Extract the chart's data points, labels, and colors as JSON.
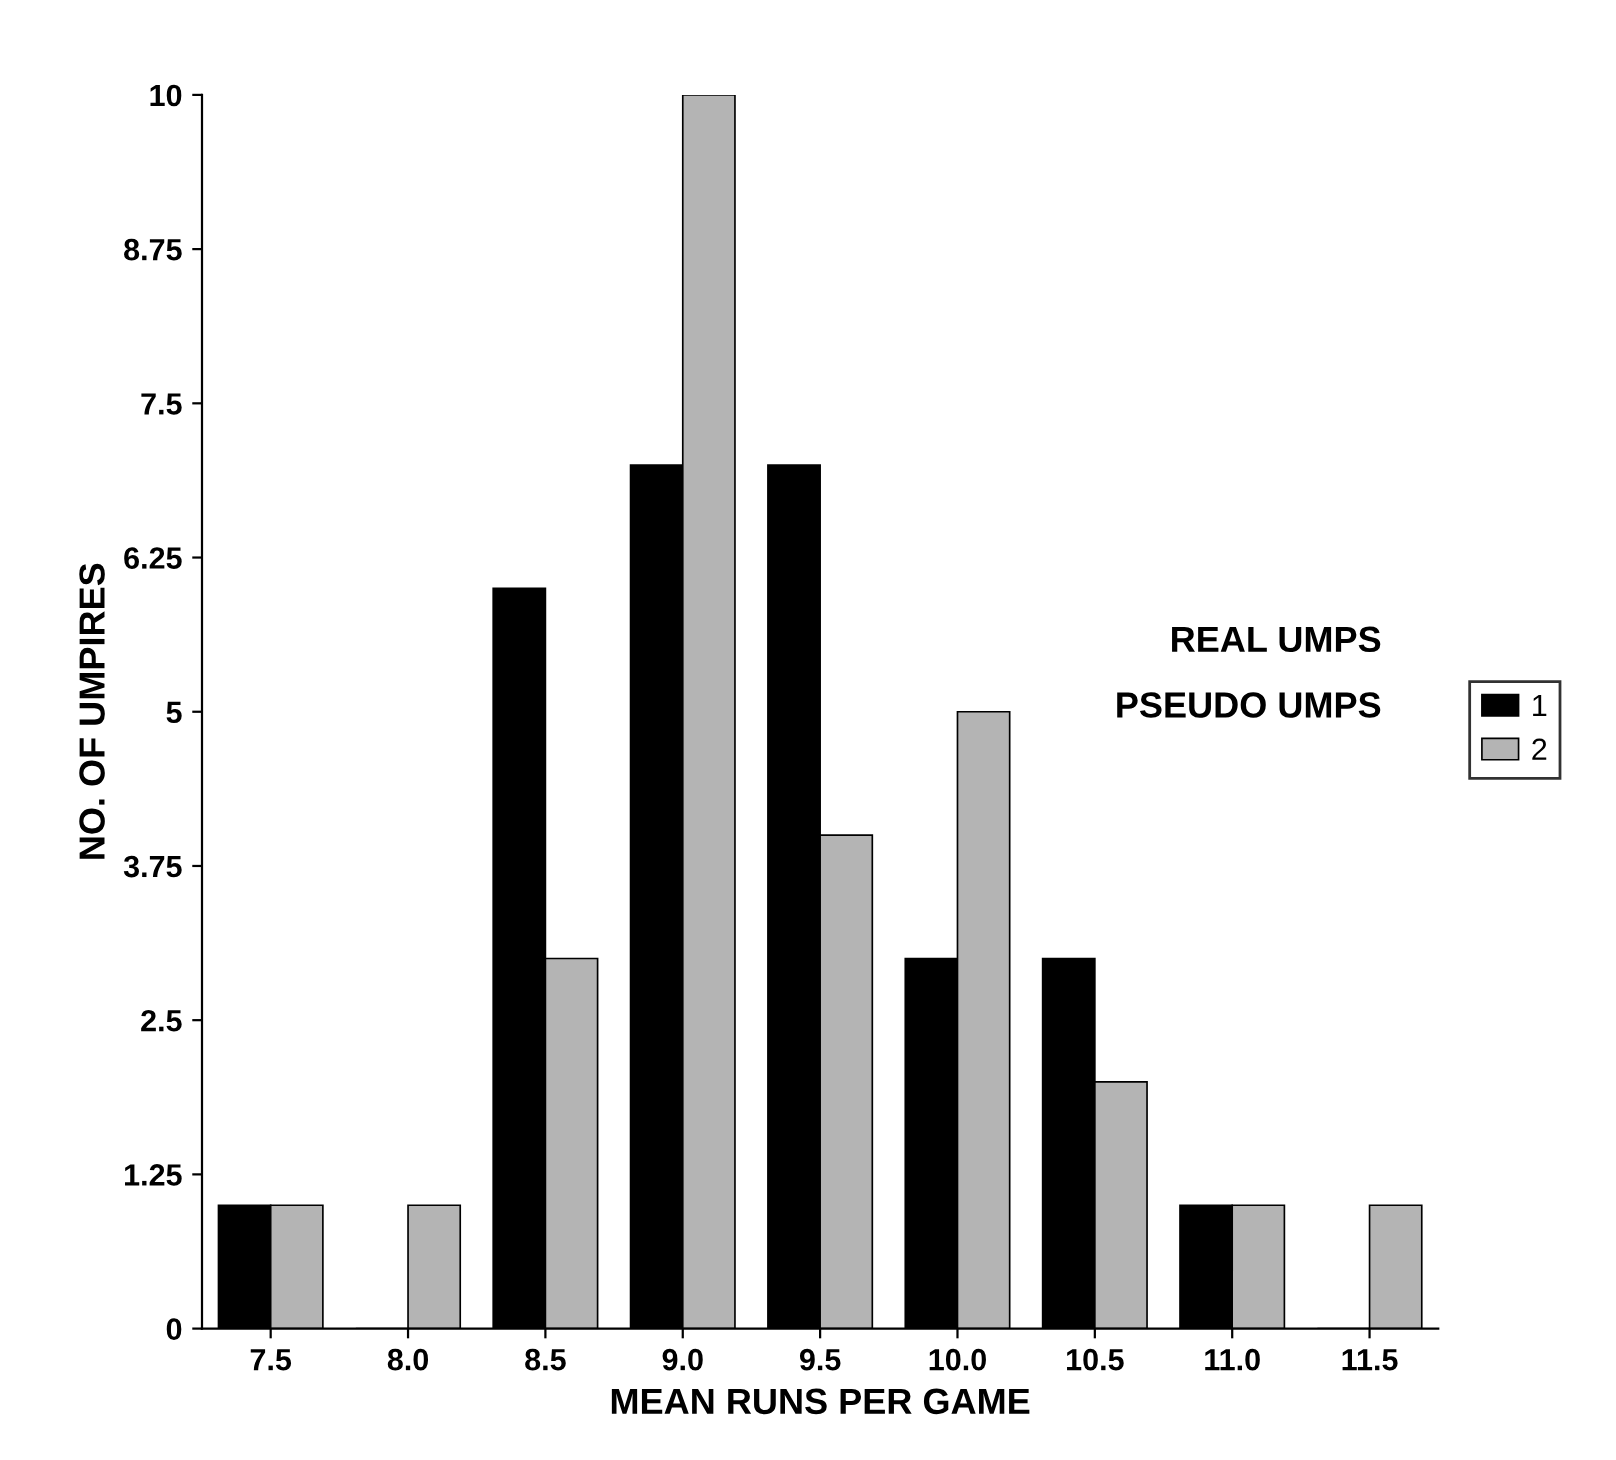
{
  "chart_data": {
    "type": "bar",
    "xlabel": "MEAN RUNS PER GAME",
    "ylabel": "NO. OF UMPIRES",
    "categories": [
      "7.5",
      "8.0",
      "8.5",
      "9.0",
      "9.5",
      "10.0",
      "10.5",
      "11.0",
      "11.5"
    ],
    "series": [
      {
        "name": "1",
        "color": "#000000",
        "values": [
          1,
          0,
          6,
          7,
          7,
          3,
          3,
          1,
          0
        ]
      },
      {
        "name": "2",
        "color": "#b4b4b4",
        "values": [
          1,
          1,
          3,
          10,
          4,
          5,
          2,
          1,
          1
        ]
      }
    ],
    "annotations": [
      "REAL UMPS",
      "PSEUDO UMPS"
    ],
    "ylim": [
      0,
      10
    ],
    "yticks": [
      0,
      1.25,
      2.5,
      3.75,
      5,
      6.25,
      7.5,
      8.75,
      10
    ],
    "legend": "right",
    "grid": false
  }
}
